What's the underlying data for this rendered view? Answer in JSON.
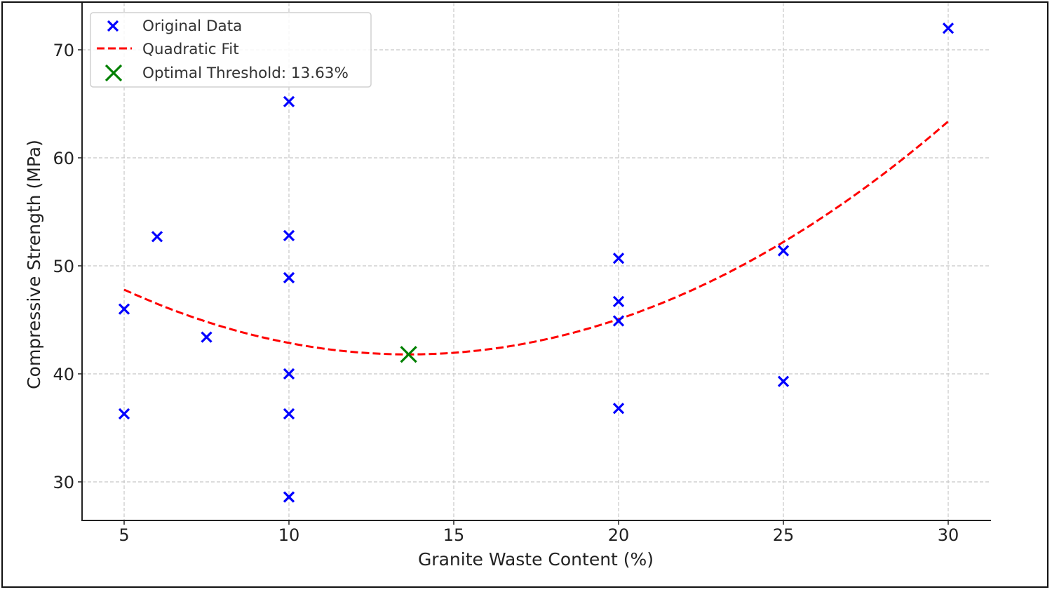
{
  "chart_data": {
    "type": "scatter",
    "title": "",
    "xlabel": "Granite Waste Content (%)",
    "ylabel": "Compressive Strength (MPa)",
    "xlim": [
      3.75,
      31.25
    ],
    "ylim": [
      26.3,
      73.7
    ],
    "xticks": [
      5,
      10,
      15,
      20,
      25,
      30
    ],
    "yticks": [
      30,
      40,
      50,
      60,
      70
    ],
    "grid": true,
    "legend_position": "upper left",
    "legend": [
      {
        "label": "Original Data",
        "marker": "x",
        "color": "#0000ff"
      },
      {
        "label": "Quadratic Fit",
        "line": "dashed",
        "color": "#ff0000"
      },
      {
        "label": "Optimal Threshold: 13.63%",
        "marker": "X",
        "color": "#008000"
      }
    ],
    "series": [
      {
        "name": "Original Data",
        "type": "scatter",
        "marker": "x",
        "color": "#0000ff",
        "points": [
          {
            "x": 5,
            "y": 46.0
          },
          {
            "x": 5,
            "y": 36.3
          },
          {
            "x": 6,
            "y": 52.7
          },
          {
            "x": 7.5,
            "y": 43.4
          },
          {
            "x": 10,
            "y": 65.2
          },
          {
            "x": 10,
            "y": 52.8
          },
          {
            "x": 10,
            "y": 48.9
          },
          {
            "x": 10,
            "y": 40.0
          },
          {
            "x": 10,
            "y": 36.3
          },
          {
            "x": 10,
            "y": 28.6
          },
          {
            "x": 20,
            "y": 50.7
          },
          {
            "x": 20,
            "y": 46.7
          },
          {
            "x": 20,
            "y": 44.9
          },
          {
            "x": 20,
            "y": 36.8
          },
          {
            "x": 25,
            "y": 51.4
          },
          {
            "x": 25,
            "y": 39.3
          },
          {
            "x": 30,
            "y": 72.0
          }
        ]
      },
      {
        "name": "Quadratic Fit",
        "type": "line",
        "style": "dashed",
        "color": "#ff0000",
        "vertex": {
          "x": 13.63,
          "y": 41.8
        },
        "a": 0.0805,
        "x_range": [
          5,
          30
        ],
        "endpoints": [
          {
            "x": 5,
            "y": 47.8
          },
          {
            "x": 30,
            "y": 63.4
          }
        ]
      },
      {
        "name": "Optimal Threshold: 13.63%",
        "type": "scatter",
        "marker": "X",
        "color": "#008000",
        "points": [
          {
            "x": 13.63,
            "y": 41.8
          }
        ]
      }
    ]
  }
}
